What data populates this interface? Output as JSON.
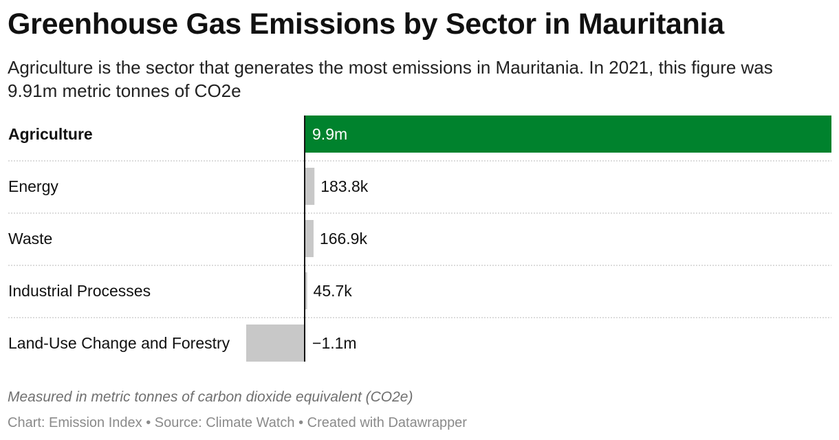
{
  "header": {
    "title": "Greenhouse Gas Emissions by Sector in Mauritania",
    "subtitle": "Agriculture is the sector that generates the most emissions in Mauritania. In 2021, this figure was 9.91m metric tonnes of CO2e"
  },
  "chart_data": {
    "type": "bar",
    "orientation": "horizontal",
    "categories": [
      "Agriculture",
      "Energy",
      "Waste",
      "Industrial Processes",
      "Land-Use Change and Forestry"
    ],
    "values": [
      9910000,
      183800,
      166900,
      45700,
      -1100000
    ],
    "value_labels": [
      "9.9m",
      "183.8k",
      "166.9k",
      "45.7k",
      "−1.1m"
    ],
    "highlight_category": "Agriculture",
    "colors": {
      "highlight": "#00822d",
      "default": "#c8c8c8",
      "axis": "#111111",
      "divider": "#c8c8c8"
    },
    "xlim": [
      -1100000,
      9910000
    ]
  },
  "footer": {
    "note": "Measured in metric tonnes of carbon dioxide equivalent (CO2e)",
    "credits": "Chart: Emission Index • Source: Climate Watch • Created with Datawrapper"
  }
}
